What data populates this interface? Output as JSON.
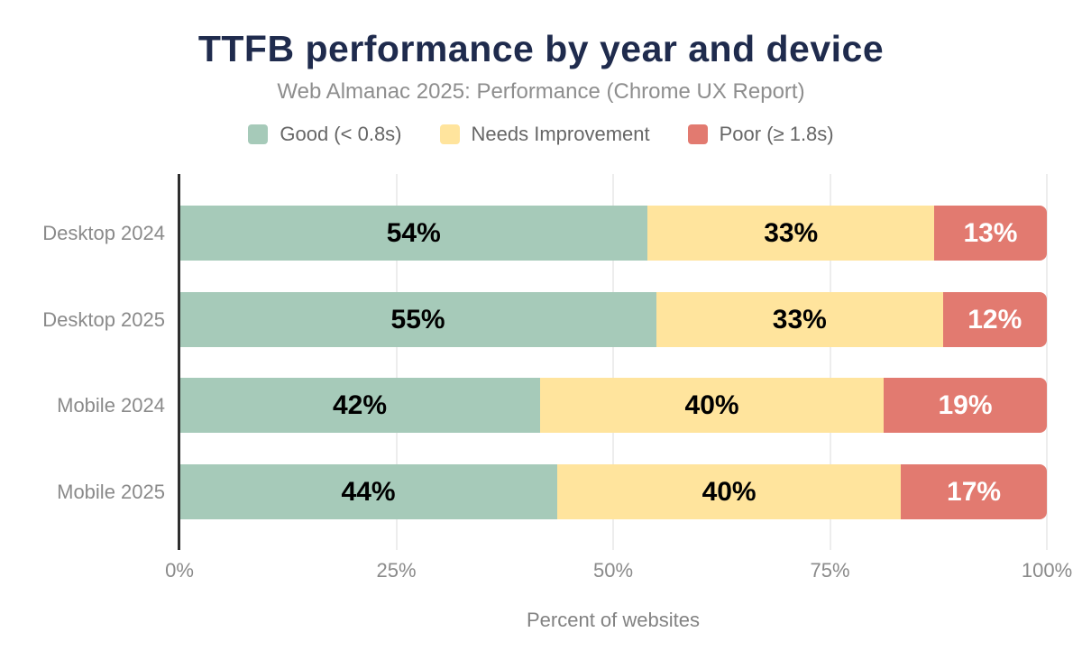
{
  "title": "TTFB performance by year and device",
  "subtitle": "Web Almanac 2025: Performance (Chrome UX Report)",
  "legend": [
    {
      "label": "Good (< 0.8s)",
      "color": "#a6cab9"
    },
    {
      "label": "Needs Improvement",
      "color": "#ffe49d"
    },
    {
      "label": "Poor (≥ 1.8s)",
      "color": "#e27a70"
    }
  ],
  "chart_data": {
    "type": "bar",
    "orientation": "horizontal",
    "stacked": true,
    "title": "TTFB performance by year and device",
    "subtitle": "Web Almanac 2025: Performance (Chrome UX Report)",
    "categories": [
      "Desktop 2024",
      "Desktop 2025",
      "Mobile 2024",
      "Mobile 2025"
    ],
    "series": [
      {
        "name": "Good (< 0.8s)",
        "color": "#a6cab9",
        "text_color": "#000000",
        "values": [
          54,
          55,
          42,
          44
        ]
      },
      {
        "name": "Needs Improvement",
        "color": "#ffe49d",
        "text_color": "#000000",
        "values": [
          33,
          33,
          40,
          40
        ]
      },
      {
        "name": "Poor (≥ 1.8s)",
        "color": "#e27a70",
        "text_color": "#ffffff",
        "values": [
          13,
          12,
          19,
          17
        ]
      }
    ],
    "value_suffix": "%",
    "xlabel": "Percent of websites",
    "x_ticks": [
      "0%",
      "25%",
      "50%",
      "75%",
      "100%"
    ],
    "x_tick_positions": [
      0,
      25,
      50,
      75,
      100
    ],
    "gridline_positions": [
      25,
      50,
      75,
      100
    ],
    "xlim": [
      0,
      100
    ],
    "grid": true,
    "legend_position": "top"
  },
  "colors": {
    "title": "#1f2b4d",
    "subtitle": "#8e8e8e",
    "axis_line": "#2e2e2e",
    "gridline": "#ededed",
    "label_gray": "#8a8a8a",
    "background": "#ffffff"
  }
}
